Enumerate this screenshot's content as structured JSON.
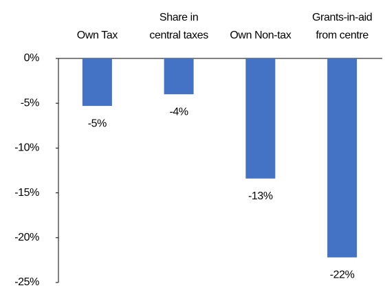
{
  "chart_data": {
    "type": "bar",
    "categories": [
      [
        "Own Tax"
      ],
      [
        "Share in",
        "central taxes"
      ],
      [
        "Own Non-tax"
      ],
      [
        "Grants-in-aid",
        "from centre"
      ]
    ],
    "values": [
      -5.3,
      -4,
      -13.4,
      -22.2
    ],
    "value_labels": [
      "-5%",
      "-4%",
      "-13%",
      "-22%"
    ],
    "color": "#4472c4",
    "ylim": [
      -25,
      0
    ],
    "yticks": [
      {
        "value": 0,
        "label": "0%"
      },
      {
        "value": -5,
        "label": "-5%"
      },
      {
        "value": -10,
        "label": "-10%"
      },
      {
        "value": -15,
        "label": "-15%"
      },
      {
        "value": -20,
        "label": "-20%"
      },
      {
        "value": -25,
        "label": "-25%"
      }
    ]
  }
}
